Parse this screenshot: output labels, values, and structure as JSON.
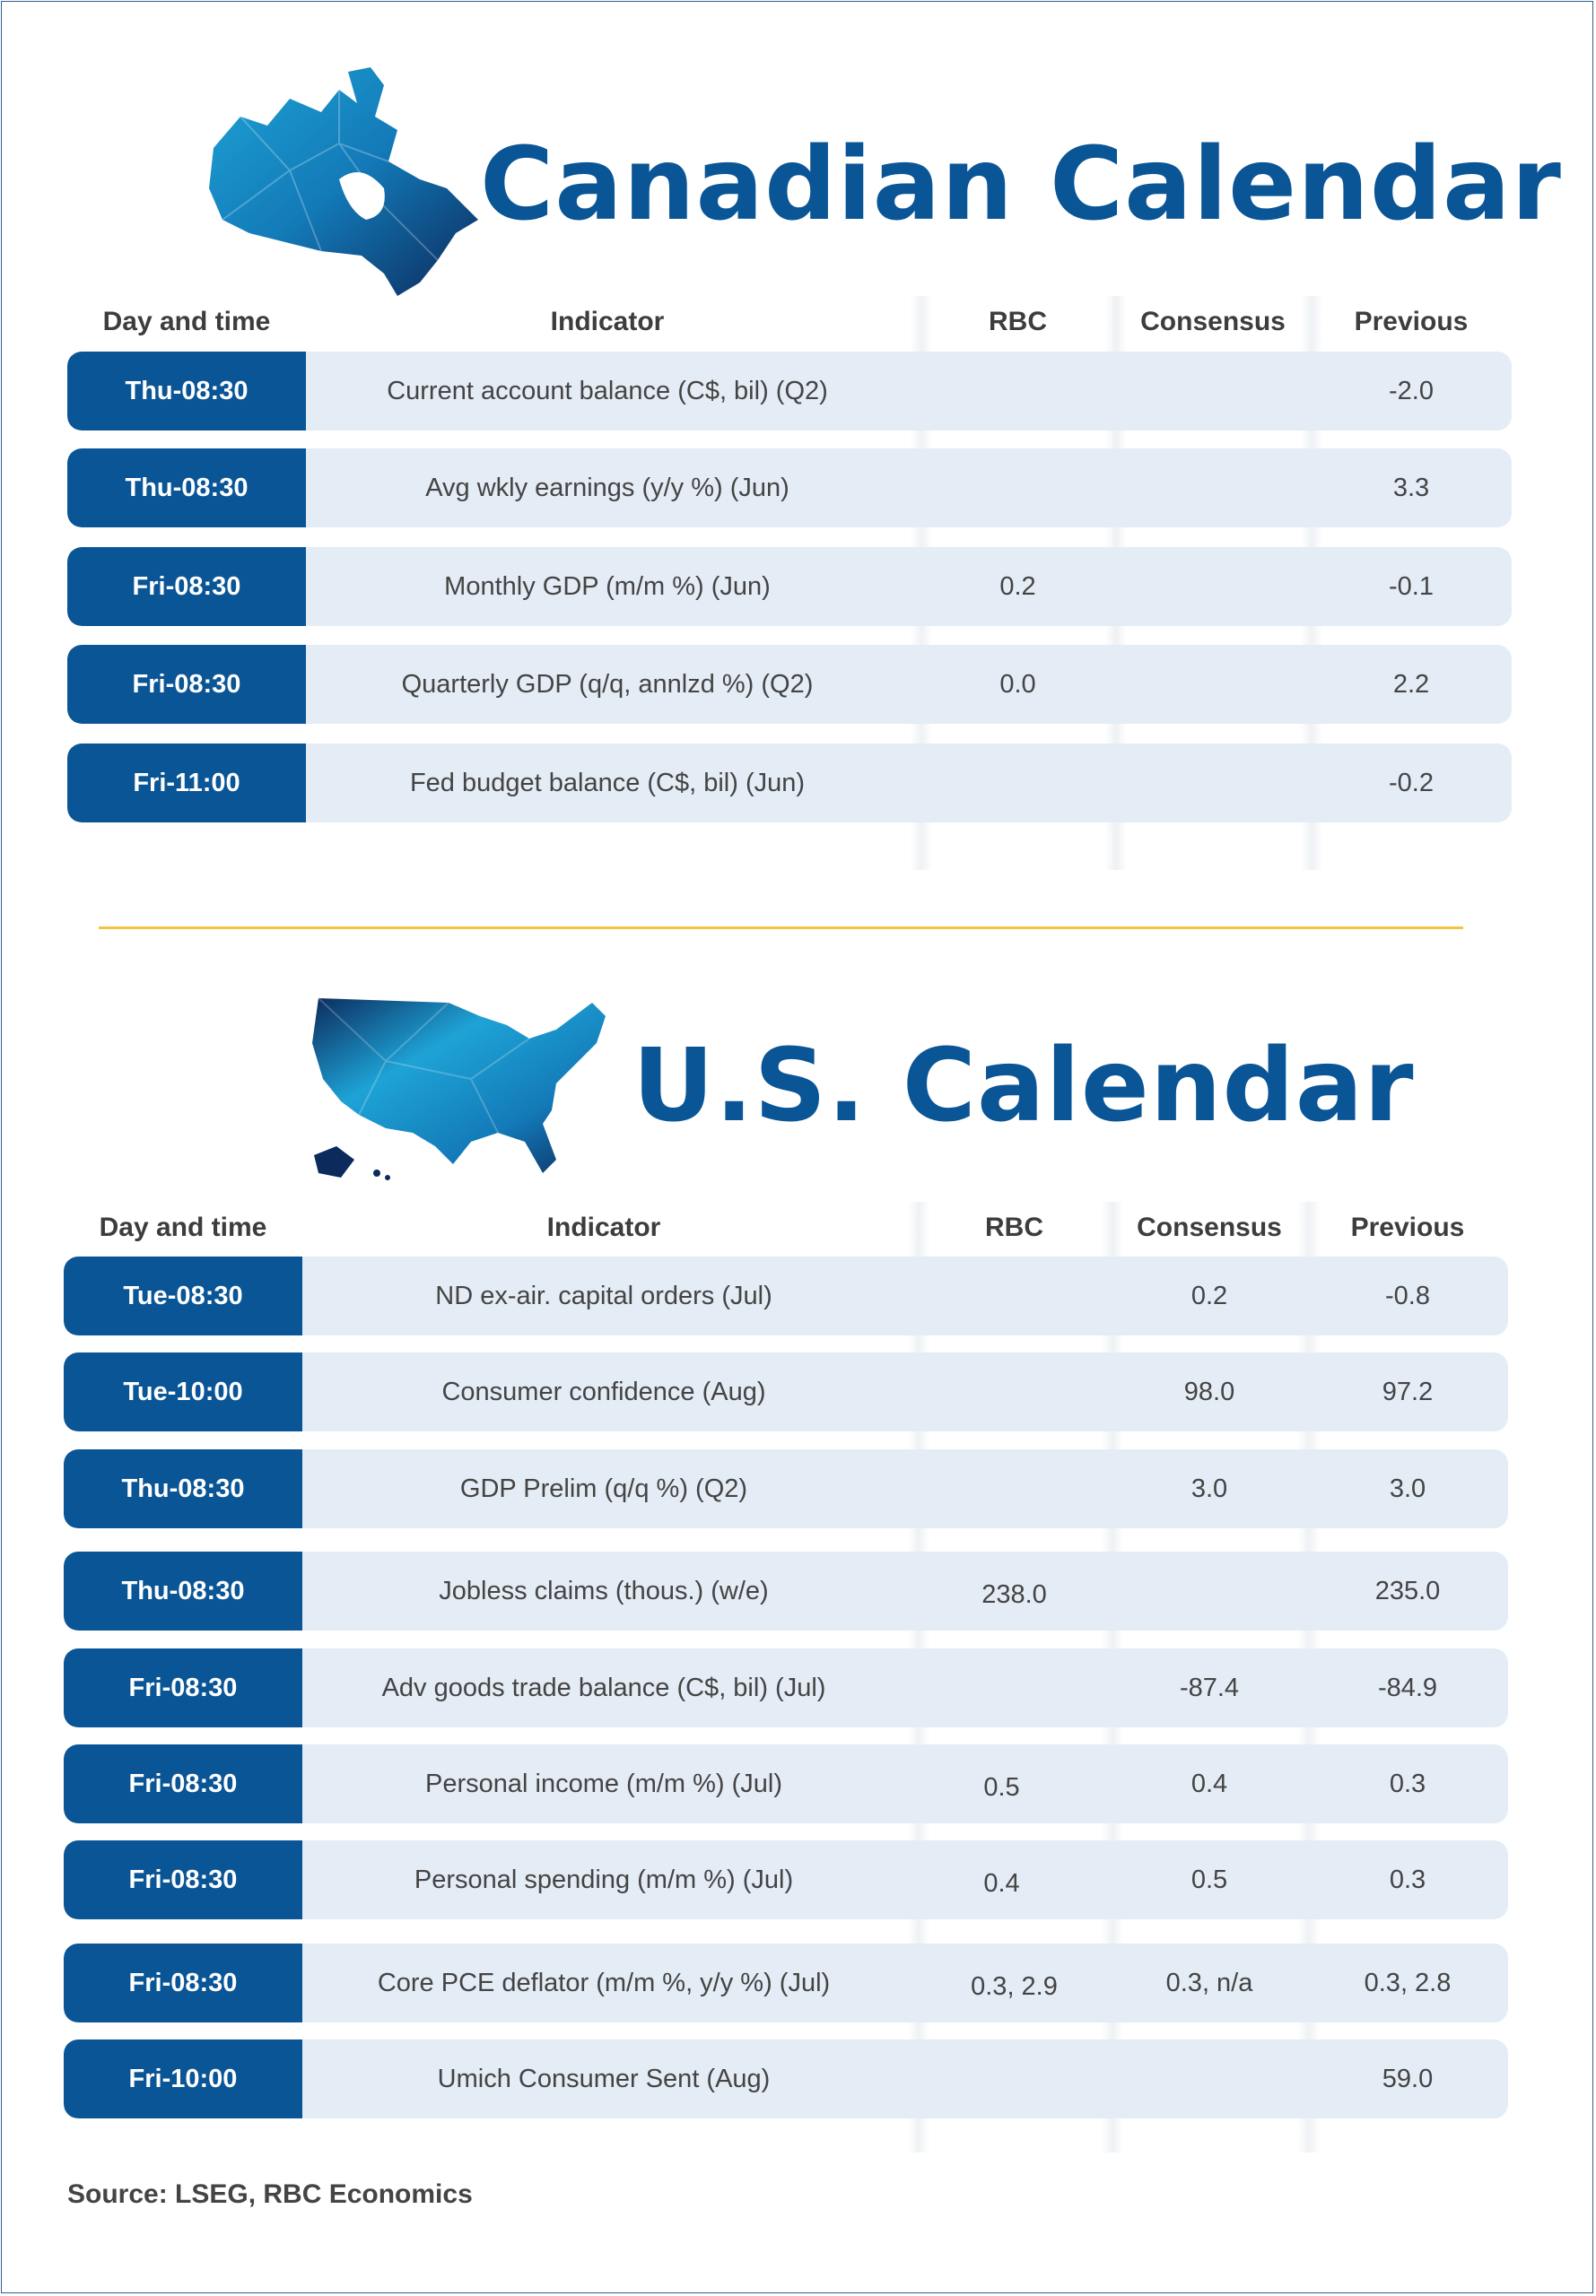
{
  "canadian": {
    "title": "Canadian Calendar",
    "headers": {
      "day": "Day and time",
      "indicator": "Indicator",
      "rbc": "RBC",
      "consensus": "Consensus",
      "previous": "Previous"
    },
    "rows": [
      {
        "day": "Thu-08:30",
        "indicator": "Current account balance (C$, bil) (Q2)",
        "rbc": "",
        "consensus": "",
        "previous": "-2.0"
      },
      {
        "day": "Thu-08:30",
        "indicator": "Avg wkly earnings (y/y %) (Jun)",
        "rbc": "",
        "consensus": "",
        "previous": "3.3"
      },
      {
        "day": "Fri-08:30",
        "indicator": "Monthly GDP (m/m %) (Jun)",
        "rbc": "0.2",
        "consensus": "",
        "previous": "-0.1"
      },
      {
        "day": "Fri-08:30",
        "indicator": "Quarterly GDP (q/q, annlzd %) (Q2)",
        "rbc": "0.0",
        "consensus": "",
        "previous": "2.2"
      },
      {
        "day": "Fri-11:00",
        "indicator": "Fed budget balance (C$, bil) (Jun)",
        "rbc": "",
        "consensus": "",
        "previous": "-0.2"
      }
    ]
  },
  "us": {
    "title": "U.S. Calendar",
    "headers": {
      "day": "Day and time",
      "indicator": "Indicator",
      "rbc": "RBC",
      "consensus": "Consensus",
      "previous": "Previous"
    },
    "rows": [
      {
        "day": "Tue-08:30",
        "indicator": "ND ex-air. capital orders (Jul)",
        "rbc": "",
        "consensus": "0.2",
        "previous": "-0.8"
      },
      {
        "day": "Tue-10:00",
        "indicator": "Consumer confidence (Aug)",
        "rbc": "",
        "consensus": "98.0",
        "previous": "97.2"
      },
      {
        "day": "Thu-08:30",
        "indicator": "GDP Prelim (q/q %) (Q2)",
        "rbc": "",
        "consensus": "3.0",
        "previous": "3.0"
      },
      {
        "day": "Thu-08:30",
        "indicator": "Jobless claims (thous.) (w/e)",
        "rbc": "238.0",
        "consensus": "",
        "previous": "235.0"
      },
      {
        "day": "Fri-08:30",
        "indicator": "Adv goods trade balance (C$, bil) (Jul)",
        "rbc": "",
        "consensus": "-87.4",
        "previous": "-84.9"
      },
      {
        "day": "Fri-08:30",
        "indicator": "Personal income (m/m %) (Jul)",
        "rbc": "0.5",
        "consensus": "0.4",
        "previous": "0.3"
      },
      {
        "day": "Fri-08:30",
        "indicator": "Personal spending (m/m %) (Jul)",
        "rbc": "0.4",
        "consensus": "0.5",
        "previous": "0.3"
      },
      {
        "day": "Fri-08:30",
        "indicator": "Core PCE deflator (m/m %, y/y %) (Jul)",
        "rbc": "0.3, 2.9",
        "consensus": "0.3, n/a",
        "previous": "0.3, 2.8"
      },
      {
        "day": "Fri-10:00",
        "indicator": "Umich Consumer Sent (Aug)",
        "rbc": "",
        "consensus": "",
        "previous": "59.0"
      }
    ]
  },
  "source": "Source: LSEG,  RBC Economics",
  "colors": {
    "brand_blue": "#0a5596",
    "row_bg": "#e4ecf5",
    "divider": "#f5c242"
  }
}
